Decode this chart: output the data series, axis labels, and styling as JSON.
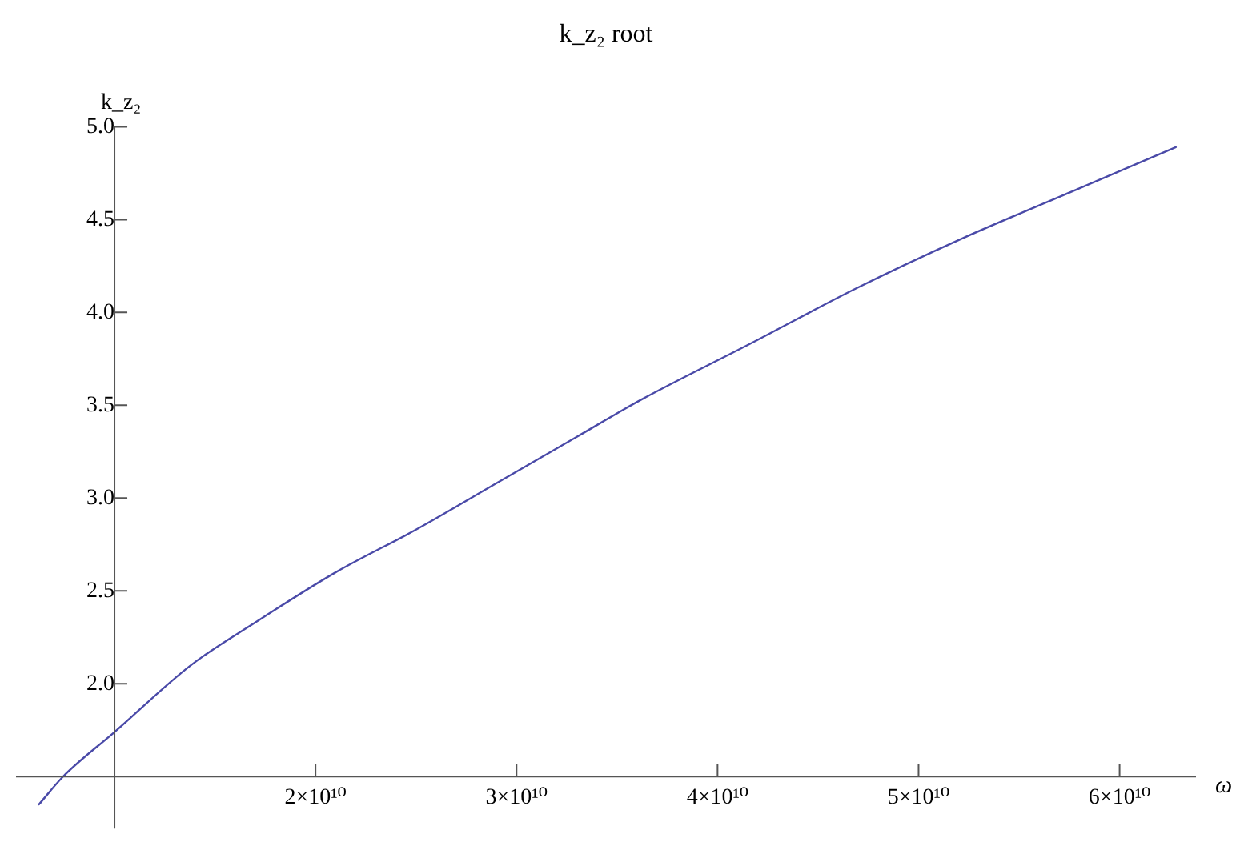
{
  "chart_data": {
    "type": "line",
    "title": "k_z₂ root",
    "xlabel": "ω",
    "ylabel": "k_z₂",
    "x": [
      6240000000.0,
      7440000000.0,
      10000000000.0,
      13800000000.0,
      17000000000.0,
      21000000000.0,
      25000000000.0,
      29000000000.0,
      33000000000.0,
      36200000000.0,
      41600000000.0,
      46900000000.0,
      52200000000.0,
      57600000000.0,
      62800000000.0
    ],
    "series": [
      {
        "color": "#4a4aa8",
        "values": [
          1.35,
          1.5,
          1.74,
          2.1,
          2.33,
          2.6,
          2.83,
          3.08,
          3.33,
          3.53,
          3.83,
          4.13,
          4.4,
          4.65,
          4.89
        ]
      }
    ],
    "xlim": [
      5100000000.0,
      63800000000.0
    ],
    "ylim": [
      1.22,
      5.0
    ],
    "xticks": [
      {
        "value": 20000000000.0,
        "label": "2×10¹⁰"
      },
      {
        "value": 30000000000.0,
        "label": "3×10¹⁰"
      },
      {
        "value": 40000000000.0,
        "label": "4×10¹⁰"
      },
      {
        "value": 50000000000.0,
        "label": "5×10¹⁰"
      },
      {
        "value": 60000000000.0,
        "label": "6×10¹⁰"
      }
    ],
    "yticks": [
      {
        "value": 2,
        "label": "2.0"
      },
      {
        "value": 2.5,
        "label": "2.5"
      },
      {
        "value": 3,
        "label": "3.0"
      },
      {
        "value": 3.5,
        "label": "3.5"
      },
      {
        "value": 4,
        "label": "4.0"
      },
      {
        "value": 4.5,
        "label": "4.5"
      },
      {
        "value": 5,
        "label": "5.0"
      }
    ]
  }
}
